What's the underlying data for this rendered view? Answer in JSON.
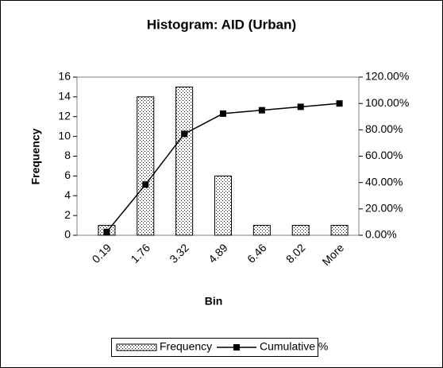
{
  "chart_data": {
    "type": "bar",
    "title": "Histogram: AID (Urban)",
    "x_label": "Bin",
    "y_label": "Frequency",
    "categories": [
      "0.19",
      "1.76",
      "3.32",
      "4.89",
      "6.46",
      "8.02",
      "More"
    ],
    "series": [
      {
        "name": "Frequency",
        "type": "bar",
        "color": "#000000",
        "values": [
          1,
          14,
          15,
          6,
          1,
          1,
          1
        ]
      },
      {
        "name": "Cumulative %",
        "type": "line",
        "axis": "y2",
        "color": "#000000",
        "values": [
          2.56,
          38.46,
          76.92,
          92.31,
          94.87,
          97.44,
          100
        ]
      }
    ],
    "ylim": [
      0,
      16
    ],
    "yticks": [
      0,
      2,
      4,
      6,
      8,
      10,
      12,
      14,
      16
    ],
    "y2lim": [
      0,
      120
    ],
    "y2ticks": [
      {
        "value": 0,
        "label": "0.00%"
      },
      {
        "value": 20,
        "label": "20.00%"
      },
      {
        "value": 40,
        "label": "40.00%"
      },
      {
        "value": 60,
        "label": "60.00%"
      },
      {
        "value": 80,
        "label": "80.00%"
      },
      {
        "value": 100,
        "label": "100.00%"
      },
      {
        "value": 120,
        "label": "120.00%"
      }
    ],
    "legend": "bottom"
  }
}
